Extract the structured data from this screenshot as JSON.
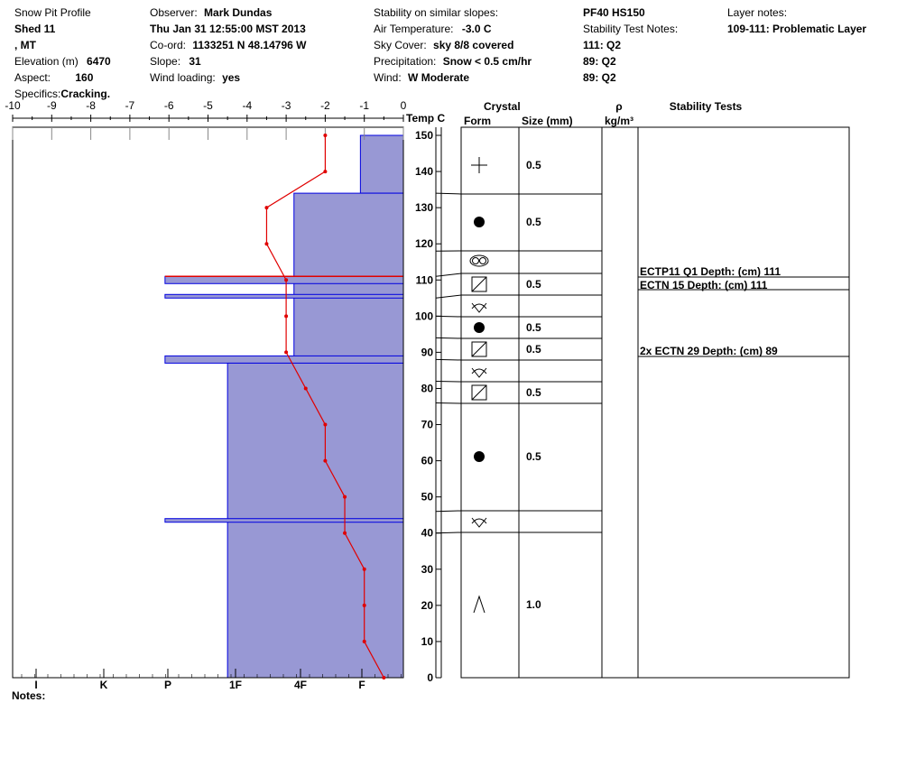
{
  "header": {
    "title": "Snow Pit Profile",
    "location": "Shed 11",
    "state": ", MT",
    "elevation_label": "Elevation (m)",
    "elevation": "6470",
    "aspect_label": "Aspect:",
    "aspect": "160",
    "specifics_label": "Specifics:",
    "specifics": "Cracking.",
    "observer_label": "Observer:",
    "observer": "Mark Dundas",
    "datetime": "Thu Jan 31 12:55:00 MST 2013",
    "coord_label": "Co-ord:",
    "coord": "1133251 N 48.14796 W",
    "slope_label": "Slope:",
    "slope": "31",
    "wind_loading_label": "Wind loading:",
    "wind_loading": "yes",
    "stability_label": "Stability on similar slopes:",
    "air_temp_label": "Air Temperature:",
    "air_temp": "-3.0 C",
    "sky_label": "Sky Cover:",
    "sky": "sky 8/8 covered",
    "precip_label": "Precipitation:",
    "precip": "Snow < 0.5 cm/hr",
    "wind_label": "Wind:",
    "wind": "W Moderate",
    "pf_hs": "PF40 HS150",
    "stability_notes_label": "Stability Test Notes:",
    "stability_notes": [
      "111: Q2",
      "89: Q2",
      "89: Q2"
    ],
    "layer_notes_label": "Layer notes:",
    "layer_notes": "109-111: Problematic Layer",
    "notes_label": "Notes:"
  },
  "chart_data": {
    "type": "snow_profile",
    "temp_axis": {
      "label": "Temp C",
      "ticks": [
        "-10",
        "-9",
        "-8",
        "-7",
        "-6",
        "-5",
        "-4",
        "-3",
        "-2",
        "-1",
        "0"
      ],
      "range": [
        -10,
        0
      ]
    },
    "depth_axis": {
      "range": [
        0,
        150
      ],
      "ticks": [
        "0",
        "10",
        "20",
        "30",
        "40",
        "50",
        "60",
        "70",
        "80",
        "90",
        "100",
        "110",
        "120",
        "130",
        "140",
        "150"
      ]
    },
    "hardness_axis": {
      "ticks": [
        "I",
        "K",
        "P",
        "1F",
        "4F",
        "F"
      ]
    },
    "column_headers": {
      "crystal": "Crystal",
      "form": "Form",
      "size": "Size (mm)",
      "rho": "ρ",
      "rho_unit": "kg/m³",
      "stability": "Stability Tests"
    },
    "temperature_profile": [
      {
        "depth": 150,
        "temp": -2.0
      },
      {
        "depth": 140,
        "temp": -2.0
      },
      {
        "depth": 130,
        "temp": -3.5
      },
      {
        "depth": 120,
        "temp": -3.5
      },
      {
        "depth": 110,
        "temp": -3.0
      },
      {
        "depth": 100,
        "temp": -3.0
      },
      {
        "depth": 90,
        "temp": -3.0
      },
      {
        "depth": 80,
        "temp": -2.5
      },
      {
        "depth": 70,
        "temp": -2.0
      },
      {
        "depth": 60,
        "temp": -2.0
      },
      {
        "depth": 50,
        "temp": -1.5
      },
      {
        "depth": 40,
        "temp": -1.5
      },
      {
        "depth": 30,
        "temp": -1.0
      },
      {
        "depth": 20,
        "temp": -1.0
      },
      {
        "depth": 10,
        "temp": -1.0
      },
      {
        "depth": 0,
        "temp": -0.5
      }
    ],
    "hardness_layers": [
      {
        "top": 150,
        "bottom": 134,
        "temp_extent": -1.1
      },
      {
        "top": 134,
        "bottom": 87,
        "temp_extent": -2.8
      },
      {
        "top": 111,
        "bottom": 109,
        "temp_extent": -6.1
      },
      {
        "top": 106,
        "bottom": 105,
        "temp_extent": -6.1
      },
      {
        "top": 89,
        "bottom": 87,
        "temp_extent": -6.1
      },
      {
        "top": 87,
        "bottom": 0,
        "temp_extent": -4.5
      },
      {
        "top": 44,
        "bottom": 43,
        "temp_extent": -6.1
      }
    ],
    "layer_boundaries": [
      134,
      118,
      111,
      105,
      100,
      94,
      88,
      82,
      76,
      46,
      40
    ],
    "crystal_layers": [
      {
        "form": "precipitation-particles-icon",
        "size": "0.5",
        "depth": 141.5
      },
      {
        "form": "rounded-grains-icon",
        "size": "0.5",
        "depth": 126
      },
      {
        "form": "graupel-icon",
        "size": "",
        "depth": 114.5
      },
      {
        "form": "faceted-crystals-icon",
        "size": "0.5",
        "depth": 109
      },
      {
        "form": "surface-hoar-icon",
        "size": "",
        "depth": 103
      },
      {
        "form": "rounded-grains-icon",
        "size": "0.5",
        "depth": 97
      },
      {
        "form": "faceted-crystals-icon",
        "size": "0.5",
        "depth": 91
      },
      {
        "form": "surface-hoar-icon",
        "size": "",
        "depth": 85
      },
      {
        "form": "faceted-crystals-icon",
        "size": "0.5",
        "depth": 79
      },
      {
        "form": "rounded-grains-icon",
        "size": "0.5",
        "depth": 61
      },
      {
        "form": "surface-hoar-icon",
        "size": "",
        "depth": 43
      },
      {
        "form": "depth-hoar-icon",
        "size": "1.0",
        "depth": 20
      }
    ],
    "stability_tests": [
      {
        "text": "ECTP11 Q1 Depth: (cm) 111",
        "depth": 111
      },
      {
        "text": "ECTN 15   Depth: (cm) 111",
        "depth": 111
      },
      {
        "text": "2x ECTN 29   Depth: (cm) 89",
        "depth": 89
      }
    ]
  }
}
